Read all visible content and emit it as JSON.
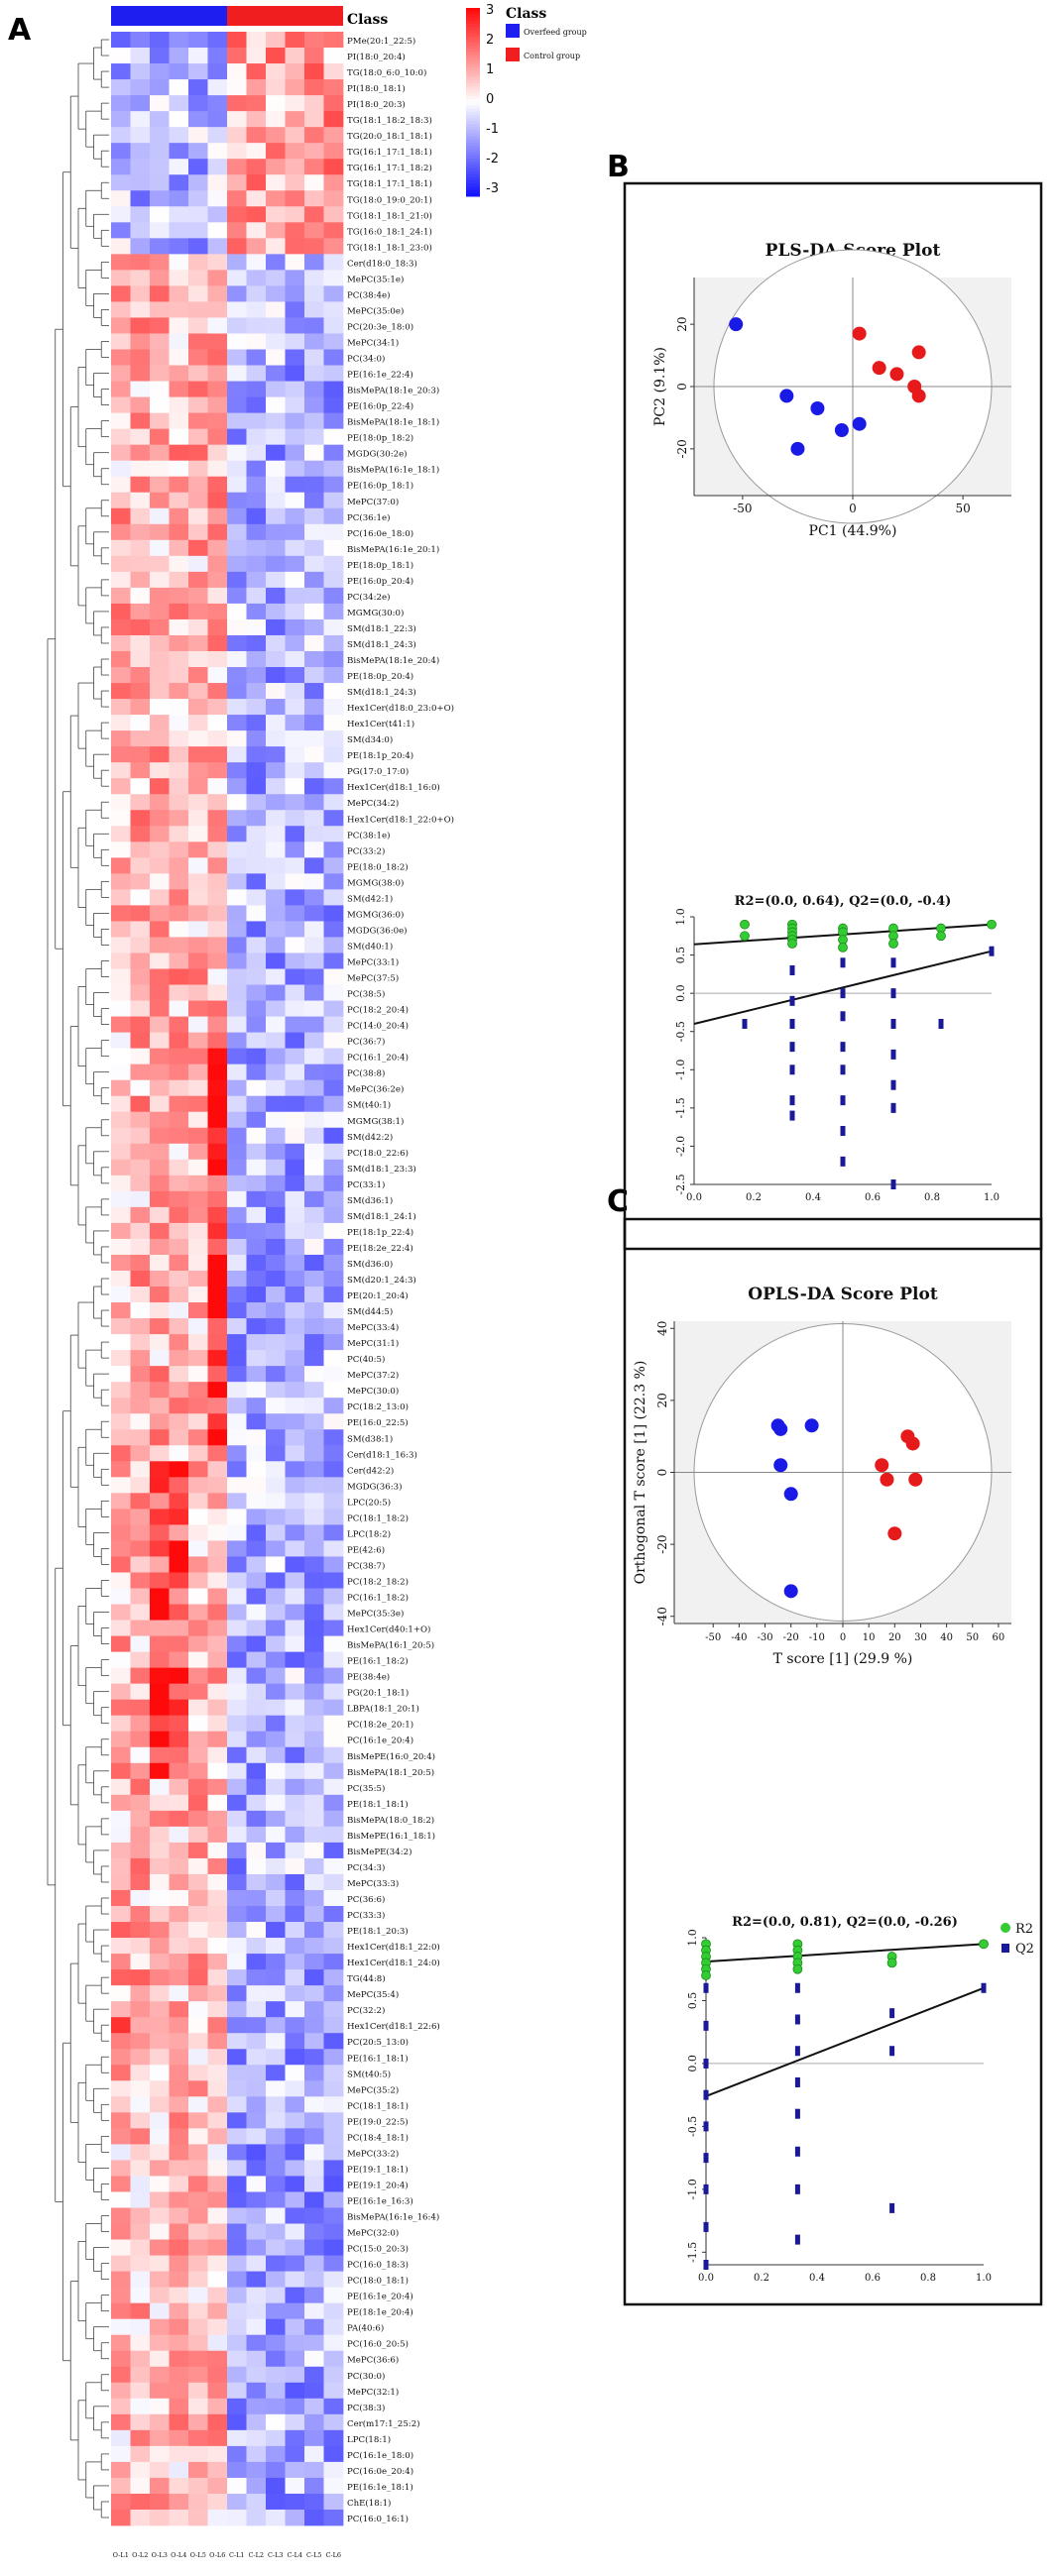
{
  "panels": {
    "A": "A",
    "B": "B",
    "C": "C"
  },
  "heatmap": {
    "class_title": "Class",
    "legend_title": "Class",
    "legend_items": [
      {
        "label": "Overfeed group",
        "color": "#1e1ef0"
      },
      {
        "label": "Control group",
        "color": "#f01e1e"
      }
    ],
    "colorbar_ticks": [
      "3",
      "2",
      "1",
      "0",
      "-1",
      "-2",
      "-3"
    ],
    "colorbar_range": [
      -3,
      3
    ],
    "groups": [
      {
        "label": "Overfeed group",
        "count": 6,
        "color": "#1e1ef0"
      },
      {
        "label": "Control group",
        "count": 6,
        "color": "#f01e1e"
      }
    ],
    "samples": [
      "O-L1",
      "O-L2",
      "O-L3",
      "O-L4",
      "O-L5",
      "O-L6",
      "C-L1",
      "C-L2",
      "C-L3",
      "C-L4",
      "C-L5",
      "C-L6"
    ],
    "rows": [
      "PMe(20:1_22:5)",
      "PI(18:0_20:4)",
      "TG(18:0_6:0_10:0)",
      "PI(18:0_18:1)",
      "PI(18:0_20:3)",
      "TG(18:1_18:2_18:3)",
      "TG(20:0_18:1_18:1)",
      "TG(16:1_17:1_18:1)",
      "TG(16:1_17:1_18:2)",
      "TG(18:1_17:1_18:1)",
      "TG(18:0_19:0_20:1)",
      "TG(18:1_18:1_21:0)",
      "TG(16:0_18:1_24:1)",
      "TG(18:1_18:1_23:0)",
      "Cer(d18:0_18:3)",
      "MePC(35:1e)",
      "PC(38:4e)",
      "MePC(35:0e)",
      "PC(20:3e_18:0)",
      "MePC(34:1)",
      "PC(34:0)",
      "PE(16:1e_22:4)",
      "BisMePA(18:1e_20:3)",
      "PE(16:0p_22:4)",
      "BisMePA(18:1e_18:1)",
      "PE(18:0p_18:2)",
      "MGDG(30:2e)",
      "BisMePA(16:1e_18:1)",
      "PE(16:0p_18:1)",
      "MePC(37:0)",
      "PC(36:1e)",
      "PC(16:0e_18:0)",
      "BisMePA(16:1e_20:1)",
      "PE(18:0p_18:1)",
      "PE(16:0p_20:4)",
      "PC(34:2e)",
      "MGMG(30:0)",
      "SM(d18:1_22:3)",
      "SM(d18:1_24:3)",
      "BisMePA(18:1e_20:4)",
      "PE(18:0p_20:4)",
      "SM(d18:1_24:3)",
      "Hex1Cer(d18:0_23:0+O)",
      "Hex1Cer(t41:1)",
      "SM(d34:0)",
      "PE(18:1p_20:4)",
      "PG(17:0_17:0)",
      "Hex1Cer(d18:1_16:0)",
      "MePC(34:2)",
      "Hex1Cer(d18:1_22:0+O)",
      "PC(38:1e)",
      "PC(33:2)",
      "PE(18:0_18:2)",
      "MGMG(38:0)",
      "SM(d42:1)",
      "MGMG(36:0)",
      "MGDG(36:0e)",
      "SM(d40:1)",
      "MePC(33:1)",
      "MePC(37:5)",
      "PC(38:5)",
      "PC(18:2_20:4)",
      "PC(14:0_20:4)",
      "PC(36:7)",
      "PC(16:1_20:4)",
      "PC(38:8)",
      "MePC(36:2e)",
      "SM(t40:1)",
      "MGMG(38:1)",
      "SM(d42:2)",
      "PC(18:0_22:6)",
      "SM(d18:1_23:3)",
      "PC(33:1)",
      "SM(d36:1)",
      "SM(d18:1_24:1)",
      "PE(18:1p_22:4)",
      "PE(18:2e_22:4)",
      "SM(d36:0)",
      "SM(d20:1_24:3)",
      "PE(20:1_20:4)",
      "SM(d44:5)",
      "MePC(33:4)",
      "MePC(31:1)",
      "PC(40:5)",
      "MePC(37:2)",
      "MePC(30:0)",
      "PC(18:2_13:0)",
      "PE(16:0_22:5)",
      "SM(d38:1)",
      "Cer(d18:1_16:3)",
      "Cer(d42:2)",
      "MGDG(36:3)",
      "LPC(20:5)",
      "PC(18:1_18:2)",
      "LPC(18:2)",
      "PE(42:6)",
      "PC(38:7)",
      "PC(18:2_18:2)",
      "PC(16:1_18:2)",
      "MePC(35:3e)",
      "Hex1Cer(d40:1+O)",
      "BisMePA(16:1_20:5)",
      "PE(16:1_18:2)",
      "PE(38:4e)",
      "PG(20:1_18:1)",
      "LBPA(18:1_20:1)",
      "PC(18:2e_20:1)",
      "PC(16:1e_20:4)",
      "BisMePE(16:0_20:4)",
      "BisMePA(18:1_20:5)",
      "PC(35:5)",
      "PE(18:1_18:1)",
      "BisMePA(18:0_18:2)",
      "BisMePE(16:1_18:1)",
      "BisMePE(34:2)",
      "PC(34:3)",
      "MePC(33:3)",
      "PC(36:6)",
      "PC(33:3)",
      "PE(18:1_20:3)",
      "Hex1Cer(d18:1_22:0)",
      "Hex1Cer(d18:1_24:0)",
      "TG(44:8)",
      "MePC(35:4)",
      "PC(32:2)",
      "Hex1Cer(d18:1_22:6)",
      "PC(20:5_13:0)",
      "PE(16:1_18:1)",
      "SM(t40:5)",
      "MePC(35:2)",
      "PC(18:1_18:1)",
      "PE(19:0_22:5)",
      "PC(18:4_18:1)",
      "MePC(33:2)",
      "PE(19:1_18:1)",
      "PE(19:1_20:4)",
      "PE(16:1e_16:3)",
      "BisMePA(16:1e_16:4)",
      "MePC(32:0)",
      "PC(15:0_20:3)",
      "PC(16:0_18:3)",
      "PC(18:0_18:1)",
      "PE(16:1e_20:4)",
      "PE(18:1e_20:4)",
      "PA(40:6)",
      "PC(16:0_20:5)",
      "MePC(36:6)",
      "PC(30:0)",
      "MePC(32:1)",
      "PC(38:3)",
      "Cer(m17:1_25:2)",
      "LPC(18:1)",
      "PC(16:1e_18:0)",
      "PC(16:0e_20:4)",
      "PE(16:1e_18:1)",
      "ChE(18:1)",
      "PC(16:0_16:1)"
    ]
  },
  "chart_data": [
    {
      "type": "heatmap",
      "title": "",
      "legend": [
        "Overfeed group",
        "Control group"
      ],
      "value_range": [
        -3,
        3
      ],
      "columns": [
        "O-L1",
        "O-L2",
        "O-L3",
        "O-L4",
        "O-L5",
        "O-L6",
        "C-L1",
        "C-L2",
        "C-L3",
        "C-L4",
        "C-L5",
        "C-L6"
      ],
      "note": "z-scored lipid abundances, 157 lipid species (rows listed in heatmap.rows)"
    },
    {
      "type": "scatter",
      "title": "PLS-DA Score Plot",
      "xlabel": "PC1 (44.9%)",
      "ylabel": "PC2 (9.1%)",
      "xlim": [
        -72,
        72
      ],
      "ylim": [
        -35,
        35
      ],
      "xticks": [
        "-50",
        "0",
        "50"
      ],
      "yticks": [
        "20",
        "0",
        "-20"
      ],
      "series": [
        {
          "name": "Overfeed group",
          "color": "#1a1ae6",
          "points": [
            [
              -53,
              20
            ],
            [
              -30,
              -3
            ],
            [
              -16,
              -7
            ],
            [
              -5,
              -14
            ],
            [
              3,
              -12
            ],
            [
              -25,
              -20
            ]
          ]
        },
        {
          "name": "Control group",
          "color": "#e61a1a",
          "points": [
            [
              3,
              17
            ],
            [
              12,
              6
            ],
            [
              20,
              4
            ],
            [
              30,
              11
            ],
            [
              28,
              0
            ],
            [
              30,
              -3
            ]
          ]
        }
      ]
    },
    {
      "type": "scatter",
      "title": "R2=(0.0, 0.64), Q2=(0.0, -0.4)",
      "xlim": [
        0,
        1
      ],
      "ylim": [
        -2.5,
        1.0
      ],
      "xticks": [
        "0.0",
        "0.2",
        "0.4",
        "0.6",
        "0.8",
        "1.0"
      ],
      "yticks": [
        "1.0",
        "0.5",
        "0.0",
        "-0.5",
        "-1.0",
        "-1.5",
        "-2.0",
        "-2.5"
      ],
      "series": [
        {
          "name": "R2",
          "color": "#33cc33",
          "points": [
            [
              0.17,
              0.9
            ],
            [
              0.17,
              0.75
            ],
            [
              0.33,
              0.9
            ],
            [
              0.33,
              0.85
            ],
            [
              0.33,
              0.8
            ],
            [
              0.33,
              0.75
            ],
            [
              0.33,
              0.7
            ],
            [
              0.33,
              0.65
            ],
            [
              0.5,
              0.85
            ],
            [
              0.5,
              0.8
            ],
            [
              0.5,
              0.7
            ],
            [
              0.5,
              0.6
            ],
            [
              0.67,
              0.85
            ],
            [
              0.67,
              0.75
            ],
            [
              0.67,
              0.65
            ],
            [
              0.83,
              0.85
            ],
            [
              0.83,
              0.75
            ],
            [
              1.0,
              0.9
            ]
          ]
        },
        {
          "name": "Q2",
          "color": "#1a1a99",
          "points": [
            [
              0.17,
              -0.4
            ],
            [
              0.33,
              0.3
            ],
            [
              0.33,
              -0.1
            ],
            [
              0.33,
              -0.4
            ],
            [
              0.33,
              -0.7
            ],
            [
              0.33,
              -1.0
            ],
            [
              0.33,
              -1.4
            ],
            [
              0.33,
              -1.6
            ],
            [
              0.5,
              0.4
            ],
            [
              0.5,
              0.0
            ],
            [
              0.5,
              -0.3
            ],
            [
              0.5,
              -0.7
            ],
            [
              0.5,
              -1.0
            ],
            [
              0.5,
              -1.4
            ],
            [
              0.5,
              -1.8
            ],
            [
              0.5,
              -2.2
            ],
            [
              0.67,
              0.4
            ],
            [
              0.67,
              0.0
            ],
            [
              0.67,
              -0.4
            ],
            [
              0.67,
              -0.8
            ],
            [
              0.67,
              -1.2
            ],
            [
              0.67,
              -1.5
            ],
            [
              0.67,
              -2.5
            ],
            [
              0.83,
              -0.4
            ],
            [
              1.0,
              0.55
            ]
          ]
        }
      ],
      "lines": [
        {
          "name": "R2 regression",
          "color": "#111111",
          "from": [
            0,
            0.64
          ],
          "to": [
            1,
            0.9
          ]
        },
        {
          "name": "Q2 regression",
          "color": "#111111",
          "from": [
            0,
            -0.4
          ],
          "to": [
            1,
            0.55
          ]
        }
      ]
    },
    {
      "type": "scatter",
      "title": "OPLS-DA Score Plot",
      "xlabel": "T score [1] (29.9 %)",
      "ylabel": "Orthogonal T score [1] (22.3 %)",
      "xlim": [
        -65,
        65
      ],
      "ylim": [
        -42,
        42
      ],
      "xticks": [
        "-50",
        "-40",
        "-30",
        "-20",
        "-10",
        "0",
        "10",
        "20",
        "30",
        "40",
        "50",
        "60"
      ],
      "yticks": [
        "40",
        "20",
        "0",
        "-20",
        "-40"
      ],
      "series": [
        {
          "name": "Overfeed group",
          "color": "#1a1ae6",
          "points": [
            [
              -25,
              13
            ],
            [
              -24,
              12
            ],
            [
              -12,
              13
            ],
            [
              -24,
              2
            ],
            [
              -20,
              -6
            ],
            [
              -20,
              -33
            ]
          ]
        },
        {
          "name": "Control group",
          "color": "#e61a1a",
          "points": [
            [
              25,
              10
            ],
            [
              27,
              8
            ],
            [
              15,
              2
            ],
            [
              17,
              -2
            ],
            [
              28,
              -2
            ],
            [
              20,
              -17
            ]
          ]
        }
      ]
    },
    {
      "type": "scatter",
      "title": "R2=(0.0, 0.81), Q2=(0.0, -0.26)",
      "xlim": [
        0,
        1
      ],
      "ylim": [
        -1.6,
        1.0
      ],
      "xticks": [
        "0.0",
        "0.2",
        "0.4",
        "0.6",
        "0.8",
        "1.0"
      ],
      "yticks": [
        "1.0",
        "0.5",
        "0.0",
        "-0.5",
        "-1.0",
        "-1.5"
      ],
      "legend": [
        "R2",
        "Q2"
      ],
      "series": [
        {
          "name": "R2",
          "color": "#33cc33",
          "points": [
            [
              0.0,
              0.95
            ],
            [
              0.0,
              0.9
            ],
            [
              0.0,
              0.85
            ],
            [
              0.0,
              0.8
            ],
            [
              0.0,
              0.75
            ],
            [
              0.0,
              0.7
            ],
            [
              0.33,
              0.95
            ],
            [
              0.33,
              0.9
            ],
            [
              0.33,
              0.85
            ],
            [
              0.33,
              0.8
            ],
            [
              0.33,
              0.75
            ],
            [
              0.67,
              0.85
            ],
            [
              0.67,
              0.8
            ],
            [
              1.0,
              0.95
            ]
          ]
        },
        {
          "name": "Q2",
          "color": "#1a1a99",
          "points": [
            [
              0.0,
              0.6
            ],
            [
              0.0,
              0.3
            ],
            [
              0.0,
              0.0
            ],
            [
              0.0,
              -0.25
            ],
            [
              0.0,
              -0.5
            ],
            [
              0.0,
              -0.75
            ],
            [
              0.0,
              -1.0
            ],
            [
              0.0,
              -1.3
            ],
            [
              0.0,
              -1.6
            ],
            [
              0.33,
              0.6
            ],
            [
              0.33,
              0.35
            ],
            [
              0.33,
              0.1
            ],
            [
              0.33,
              -0.15
            ],
            [
              0.33,
              -0.4
            ],
            [
              0.33,
              -0.7
            ],
            [
              0.33,
              -1.0
            ],
            [
              0.33,
              -1.4
            ],
            [
              0.67,
              0.4
            ],
            [
              0.67,
              0.1
            ],
            [
              0.67,
              -1.15
            ],
            [
              1.0,
              0.6
            ]
          ]
        }
      ],
      "lines": [
        {
          "name": "R2 regression",
          "color": "#111111",
          "from": [
            0,
            0.81
          ],
          "to": [
            1,
            0.95
          ]
        },
        {
          "name": "Q2 regression",
          "color": "#111111",
          "from": [
            0,
            -0.26
          ],
          "to": [
            1,
            0.6
          ]
        }
      ]
    }
  ]
}
